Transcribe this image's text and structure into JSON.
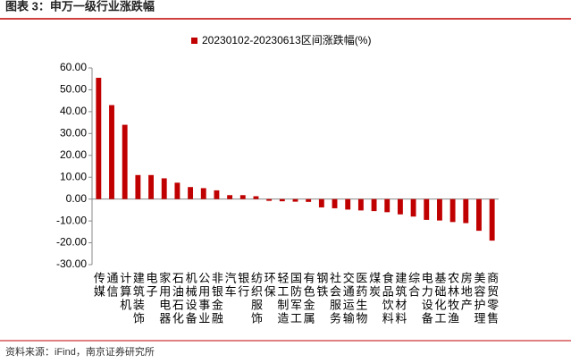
{
  "chart_data": {
    "type": "bar",
    "title": "图表 3：申万一级行业涨跌幅",
    "source": "资料来源：iFind，南京证券研究所",
    "series": [
      {
        "name": "20230102-20230613区间涨跌幅(%)",
        "color": "#c00000",
        "values": [
          55.5,
          43,
          34,
          11,
          11,
          9.5,
          7.5,
          5.5,
          5,
          4,
          1.8,
          1.8,
          1.3,
          -0.8,
          -1,
          -1.2,
          -1.3,
          -3.8,
          -4.2,
          -4.8,
          -5.2,
          -5.5,
          -6,
          -7,
          -8,
          -9.5,
          -9.8,
          -10.5,
          -11,
          -14.5,
          -19
        ]
      }
    ],
    "categories": [
      "传媒",
      "通信",
      "计算机",
      "建筑装饰",
      "电子",
      "家用电器",
      "石油石化",
      "机械设备",
      "公用事业",
      "非银金融",
      "汽车",
      "银行",
      "纺织服饰",
      "环保",
      "轻工制造",
      "国防军工",
      "有色金属",
      "钢铁",
      "社会服务",
      "交通运输",
      "医药生物",
      "煤炭",
      "食品饮料",
      "建筑材料",
      "综合",
      "电力设备",
      "基础化工",
      "农林牧渔",
      "房地产",
      "美容护理",
      "商贸零售"
    ],
    "ylim": [
      -30,
      60
    ],
    "yticks": [
      {
        "value": -30,
        "label": "-30.00"
      },
      {
        "value": -20,
        "label": "-20.00"
      },
      {
        "value": -10,
        "label": "-10.00"
      },
      {
        "value": 0,
        "label": "0.00"
      },
      {
        "value": 10,
        "label": "10.00"
      },
      {
        "value": 20,
        "label": "20.00"
      },
      {
        "value": 30,
        "label": "30.00"
      },
      {
        "value": 40,
        "label": "40.00"
      },
      {
        "value": 50,
        "label": "50.00"
      },
      {
        "value": 60,
        "label": "60.00"
      }
    ]
  }
}
